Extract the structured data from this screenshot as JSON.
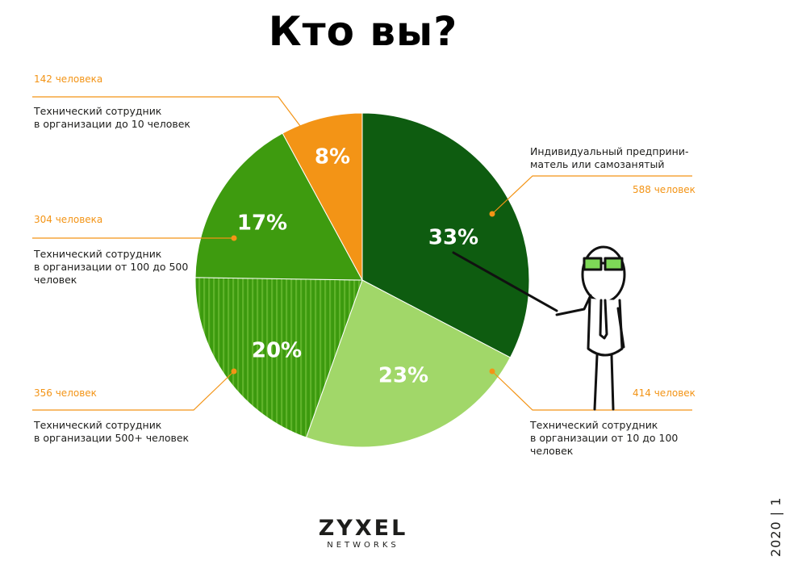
{
  "header": {
    "title": "Кто вы?"
  },
  "chart_data": {
    "type": "pie",
    "title": "Кто вы?",
    "slices": [
      {
        "category": "Индивидуальный предприни-матель или самозанятый",
        "lines": [
          "Индивидуальный предприни-",
          "матель или самозанятый"
        ],
        "percent_label": "33%",
        "value": 33,
        "count": "588 человек",
        "color": "#0e5c10"
      },
      {
        "category": "Технический сотрудник в организации от 10 до 100 человек",
        "lines": [
          "Технический сотрудник",
          "в организации от 10 до 100",
          "человек"
        ],
        "percent_label": "23%",
        "value": 23,
        "count": "414 человек",
        "color": "#a1d769"
      },
      {
        "category": "Технический сотрудник в организации 500+ человек",
        "lines": [
          "Технический сотрудник",
          "в организации 500+ человек"
        ],
        "percent_label": "20%",
        "value": 20,
        "count": "356 человек",
        "color": "#3c9a0e",
        "pattern": "vertical-stripes"
      },
      {
        "category": "Технический сотрудник в организации от 100 до 500 человек",
        "lines": [
          "Технический сотрудник",
          "в организации от 100 до 500",
          "человек"
        ],
        "percent_label": "17%",
        "value": 17,
        "count": "304 человека",
        "color": "#3e9b0f"
      },
      {
        "category": "Технический сотрудник в организации до 10 человек",
        "lines": [
          "Технический сотрудник",
          "в организации до 10 человек"
        ],
        "percent_label": "8%",
        "value": 8,
        "count": "142 человека",
        "color": "#f39416"
      }
    ]
  },
  "footer": {
    "logo_word": "ZYXEL",
    "logo_sub": "NETWORKS",
    "year_mark": "2020 | 1"
  },
  "colors": {
    "leader_line": "#f39416",
    "accent": "#f39416",
    "text": "#1d1d1b"
  }
}
